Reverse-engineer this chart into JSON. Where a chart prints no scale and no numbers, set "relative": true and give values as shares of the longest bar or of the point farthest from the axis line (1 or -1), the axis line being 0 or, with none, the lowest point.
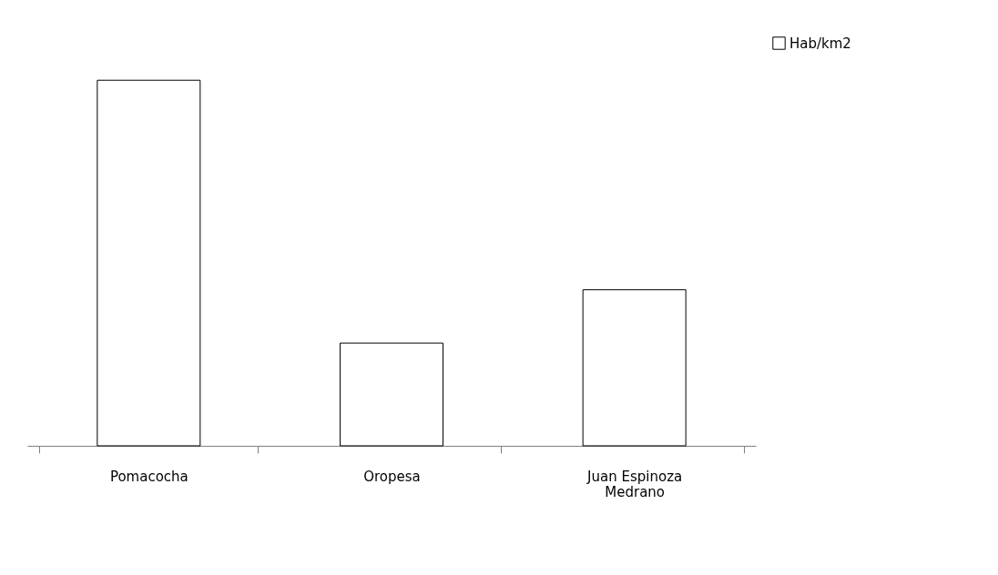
{
  "chart_data": {
    "type": "bar",
    "relative": true,
    "categories": [
      "Pomacocha",
      "Oropesa",
      "Juan Espinoza Medrano"
    ],
    "series": [
      {
        "name": "Hab/km2",
        "color": "#ffffff",
        "values": [
          1,
          0.281,
          0.427
        ]
      }
    ],
    "legend": "right",
    "grid": false
  }
}
